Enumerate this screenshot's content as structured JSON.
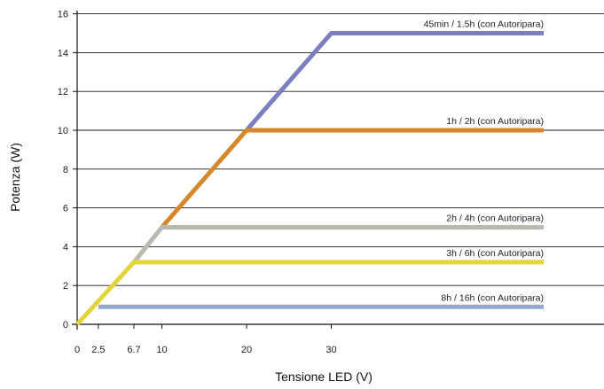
{
  "chart_data": {
    "type": "line",
    "xlabel": "Tensione LED (V)",
    "ylabel": "Potenza (W)",
    "xlim": [
      0,
      55
    ],
    "ylim": [
      0,
      16
    ],
    "x_ticks": [
      0,
      2.5,
      6.7,
      10,
      20,
      30
    ],
    "x_tick_labels": [
      "0",
      "2.5",
      "6.7",
      "10",
      "20",
      "30"
    ],
    "y_ticks": [
      0,
      2,
      4,
      6,
      8,
      10,
      12,
      14,
      16
    ],
    "y_tick_labels": [
      "0",
      "2",
      "4",
      "6",
      "8",
      "10",
      "12",
      "14",
      "16"
    ],
    "grid": "horizontal",
    "series": [
      {
        "name": "45min / 1.5h (con Autoripara)",
        "color": "#7b7fc0",
        "points": [
          [
            20,
            10
          ],
          [
            30,
            15
          ],
          [
            56,
            15
          ]
        ]
      },
      {
        "name": "1h / 2h (con Autoripara)",
        "color": "#d4882a",
        "points": [
          [
            10,
            5
          ],
          [
            20,
            10
          ],
          [
            56,
            10
          ]
        ]
      },
      {
        "name": "2h / 4h (con Autoripara)",
        "color": "#b9b9b1",
        "points": [
          [
            6.7,
            3.2
          ],
          [
            10,
            5
          ],
          [
            56,
            5
          ]
        ]
      },
      {
        "name": "3h / 6h (con Autoripara)",
        "color": "#e3d43a",
        "points": [
          [
            0,
            0
          ],
          [
            6.7,
            3.2
          ],
          [
            56,
            3.2
          ]
        ]
      },
      {
        "name": "8h / 16h (con Autoripara)",
        "color": "#93a9d2",
        "points": [
          [
            2.5,
            0.9
          ],
          [
            56,
            0.9
          ]
        ]
      }
    ]
  }
}
